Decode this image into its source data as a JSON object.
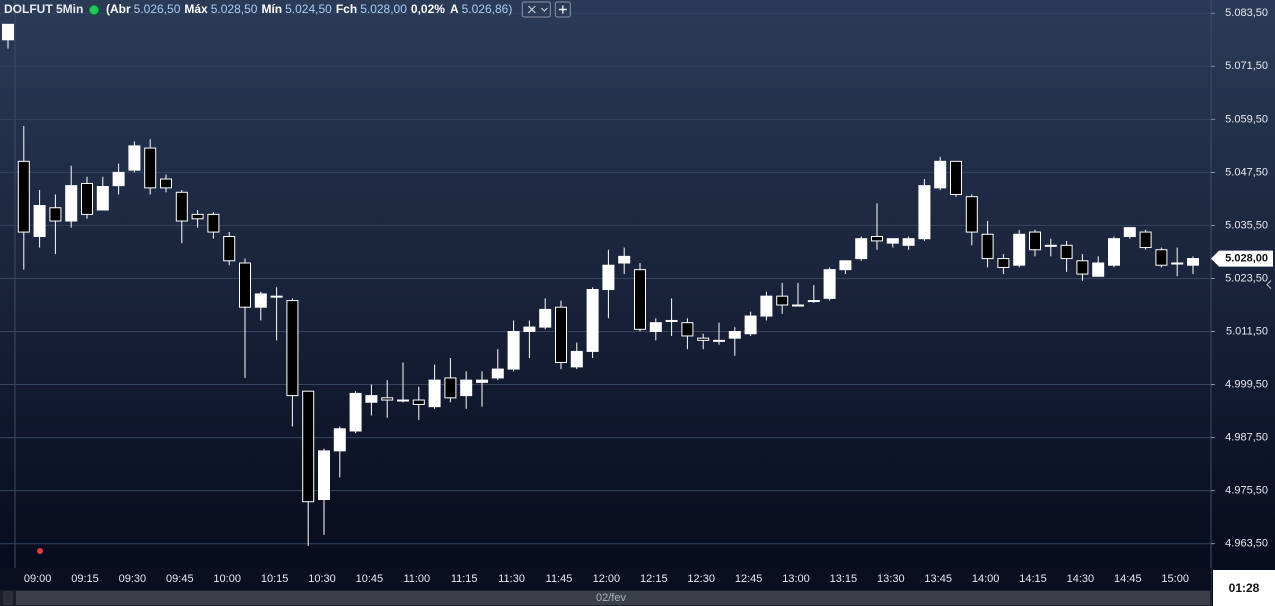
{
  "chart_data": {
    "type": "candlestick",
    "title": "DOLFUT 5Min",
    "header_items": [
      {
        "label": "(Abr",
        "value": "5.026,50"
      },
      {
        "label": "Máx",
        "value": "5.028,50"
      },
      {
        "label": "Mín",
        "value": "5.024,50"
      },
      {
        "label": "Fch",
        "value": "5.028,00"
      },
      {
        "label": "0,02%",
        "value": null
      },
      {
        "label": "A",
        "value": "5.026,86)"
      }
    ],
    "categories": [
      null,
      null,
      "09:00",
      null,
      null,
      "09:15",
      null,
      null,
      "09:30",
      null,
      null,
      "09:45",
      null,
      null,
      "10:00",
      null,
      null,
      "10:15",
      null,
      null,
      "10:30",
      null,
      null,
      "10:45",
      null,
      null,
      "11:00",
      null,
      null,
      "11:15",
      null,
      null,
      "11:30",
      null,
      null,
      "11:45",
      null,
      null,
      "12:00",
      null,
      null,
      "12:15",
      null,
      null,
      "12:30",
      null,
      null,
      "12:45",
      null,
      null,
      "13:00",
      null,
      null,
      "13:15",
      null,
      null,
      "13:30",
      null,
      null,
      "13:45",
      null,
      null,
      "14:00",
      null,
      null,
      "14:15",
      null,
      null,
      "14:30",
      null,
      null,
      "14:45",
      null,
      null,
      "15:00",
      null
    ],
    "open": [
      5077.5,
      5050,
      5033,
      5039.5,
      5036.5,
      5045,
      5039,
      5044.5,
      5048,
      5053,
      5046,
      5043,
      5038,
      5038,
      5033,
      5027,
      5017,
      5019.5,
      5018.5,
      4998,
      4973.5,
      4984.5,
      4989,
      4995.5,
      4996.5,
      4996,
      4996,
      4994.5,
      5001,
      4997,
      5000,
      5001,
      5003,
      5011.5,
      5012.5,
      5017,
      5003.5,
      5007,
      5021,
      5027,
      5025.5,
      5011.5,
      5014,
      5013.5,
      5010,
      5009.5,
      5010,
      5011,
      5015,
      5019.5,
      5017.5,
      5018.5,
      5019,
      5025.5,
      5028,
      5033,
      5031.5,
      5031,
      5032.5,
      5044,
      5050,
      5042,
      5033.5,
      5028,
      5026.5,
      5034,
      5031,
      5031,
      5027.5,
      5024,
      5026.5,
      5033,
      5034,
      5030,
      5027,
      5026.5
    ],
    "high": [
      5081,
      5058,
      5043.5,
      5042.5,
      5049,
      5046.5,
      5046.5,
      5049.5,
      5054.5,
      5055,
      5047,
      5043.5,
      5039,
      5038.5,
      5034,
      5028,
      5020.5,
      5021.5,
      5019,
      4998,
      4985,
      4990,
      4998,
      4999.5,
      5000.5,
      5004.5,
      4999,
      5004,
      5005.5,
      5002.5,
      5002.5,
      5007.5,
      5014,
      5014,
      5019,
      5018.5,
      5009,
      5021.5,
      5030,
      5030.5,
      5027,
      5014.5,
      5019,
      5014.5,
      5011,
      5013.5,
      5012.5,
      5016,
      5020.5,
      5022.5,
      5022.5,
      5022,
      5026,
      5027.5,
      5033,
      5040.5,
      5032.5,
      5033,
      5046,
      5051,
      5050,
      5042.5,
      5036.5,
      5029,
      5034.5,
      5034.5,
      5032.5,
      5032,
      5029,
      5028.5,
      5033,
      5035,
      5034.5,
      5030.5,
      5030.5,
      5028.5
    ],
    "low": [
      5075.5,
      5025.5,
      5030.5,
      5029,
      5035,
      5037,
      5039,
      5042.5,
      5047.5,
      5042.5,
      5043,
      5031.5,
      5035,
      5032.5,
      5026.5,
      5001,
      5014,
      5009.5,
      4990,
      4963,
      4965.5,
      4978.5,
      4988.5,
      4992.5,
      4992,
      4995.5,
      4991.5,
      4994,
      4995.5,
      4994,
      4994.5,
      5000.5,
      5002.5,
      5005.5,
      5012,
      5003,
      5003,
      5005.5,
      5014.5,
      5024.5,
      5011.5,
      5009.5,
      5010.5,
      5007.5,
      5007.5,
      5008.5,
      5006,
      5010.5,
      5014,
      5015.5,
      5017.5,
      5018,
      5018.5,
      5024.5,
      5027.5,
      5030,
      5030.5,
      5030,
      5032,
      5043.5,
      5042,
      5031,
      5026,
      5024.5,
      5026,
      5028.5,
      5028.5,
      5025,
      5023,
      5024,
      5026,
      5032.5,
      5030,
      5026,
      5024,
      5024.5
    ],
    "close": [
      5081,
      5034,
      5040,
      5036.5,
      5044.5,
      5038,
      5044.3,
      5047.5,
      5053.5,
      5044,
      5044,
      5036.5,
      5037,
      5034,
      5027.5,
      5017,
      5020,
      5019.5,
      4997,
      4973,
      4984.5,
      4989.5,
      4997.5,
      4997,
      4996,
      4996,
      4995,
      5000.5,
      4996.5,
      5000.5,
      5000.5,
      5003,
      5011.5,
      5012.5,
      5016.5,
      5004.5,
      5007,
      5021,
      5026.5,
      5028.5,
      5012,
      5013.5,
      5014,
      5010.5,
      5009.5,
      5009.5,
      5011.5,
      5015,
      5019.5,
      5017.5,
      5017.5,
      5018.5,
      5025.5,
      5027.5,
      5032.5,
      5032,
      5032.5,
      5032.5,
      5044.5,
      5050,
      5042.5,
      5034,
      5028,
      5026,
      5033.5,
      5030,
      5031,
      5028,
      5024.5,
      5027,
      5032.5,
      5035,
      5030.5,
      5026.5,
      5027,
      5028
    ],
    "up_color": "#ffffff",
    "down_color": "#000000",
    "ylim": [
      4958,
      5086.5
    ],
    "yticks": [
      {
        "value": 4963.5,
        "label": "4.963,50"
      },
      {
        "value": 4975.5,
        "label": "4.975,50"
      },
      {
        "value": 4987.5,
        "label": "4.987,50"
      },
      {
        "value": 4999.5,
        "label": "4.999,50"
      },
      {
        "value": 5011.5,
        "label": "5.011,50"
      },
      {
        "value": 5023.5,
        "label": "5.023,50"
      },
      {
        "value": 5035.5,
        "label": "5.035,50"
      },
      {
        "value": 5047.5,
        "label": "5.047,50"
      },
      {
        "value": 5059.5,
        "label": "5.059,50"
      },
      {
        "value": 5071.5,
        "label": "5.071,50"
      },
      {
        "value": 5083.5,
        "label": "5.083,50"
      }
    ],
    "grid": true,
    "last_price": {
      "value": 5028,
      "label": "5.028,00"
    },
    "date_label": "02/fev",
    "clock": "01:28"
  }
}
